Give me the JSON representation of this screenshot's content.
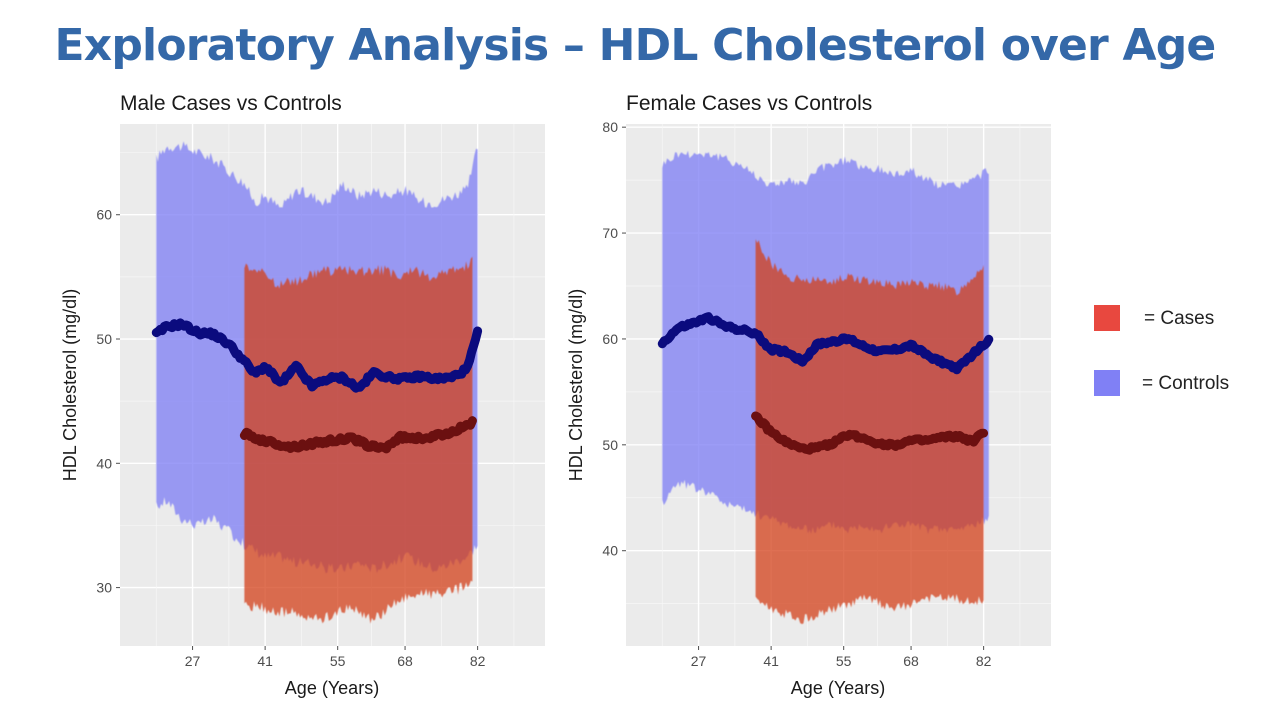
{
  "slide": {
    "title": "Exploratory Analysis – HDL Cholesterol over Age",
    "colors": {
      "title": "#3468a8",
      "cases": "#e8483f",
      "controls": "#8080f5",
      "cases_mean": "#6b1010",
      "controls_mean": "#0b0b7e"
    }
  },
  "legend": {
    "items": [
      {
        "label": "= Cases",
        "color": "#e8483f"
      },
      {
        "label": "= Controls",
        "color": "#8080f5"
      }
    ]
  },
  "chart_data": [
    {
      "type": "area",
      "title": "Male Cases vs Controls",
      "xlabel": "Age (Years)",
      "ylabel": "HDL Cholesterol (mg/dl)",
      "x_ticks": [
        27,
        41,
        55,
        68,
        82
      ],
      "y_ticks": [
        30,
        40,
        50,
        60
      ],
      "xlim": [
        13,
        95
      ],
      "ylim": [
        25.3,
        67.3
      ],
      "grid": true,
      "series": [
        {
          "name": "Controls",
          "x": [
            20,
            22,
            25,
            28,
            31,
            34,
            37,
            39,
            41,
            44,
            47,
            50,
            53,
            56,
            59,
            62,
            65,
            68,
            71,
            74,
            77,
            80,
            82
          ],
          "upper": [
            64.5,
            65.5,
            65.5,
            65.0,
            64.5,
            63.5,
            62.5,
            61.0,
            61.5,
            60.5,
            62.0,
            61.5,
            61.0,
            62.5,
            61.5,
            62.0,
            61.5,
            62.0,
            61.0,
            61.0,
            61.5,
            62.0,
            65.5
          ],
          "mean": [
            50.4,
            51.0,
            51.2,
            50.5,
            50.4,
            49.6,
            48.2,
            47.2,
            47.8,
            46.4,
            47.8,
            46.2,
            46.8,
            46.9,
            46.0,
            47.3,
            46.9,
            46.8,
            47.0,
            46.8,
            46.9,
            47.6,
            50.5
          ],
          "lower": [
            36.5,
            37.0,
            35.5,
            35.0,
            35.5,
            34.5,
            33.5,
            33.0,
            32.5,
            32.5,
            32.0,
            32.0,
            31.5,
            31.5,
            32.0,
            31.5,
            32.0,
            32.5,
            32.0,
            31.5,
            32.0,
            32.5,
            33.5
          ]
        },
        {
          "name": "Cases",
          "x": [
            37,
            40,
            43,
            46,
            49,
            52,
            55,
            58,
            61,
            64,
            67,
            70,
            73,
            76,
            79,
            81
          ],
          "upper": [
            56.0,
            55.5,
            54.5,
            54.5,
            55.0,
            55.5,
            55.5,
            55.5,
            55.5,
            55.5,
            55.0,
            55.5,
            55.0,
            55.5,
            55.5,
            56.5
          ],
          "mean": [
            42.4,
            41.9,
            41.6,
            41.3,
            41.5,
            41.7,
            41.9,
            42.0,
            41.4,
            41.2,
            42.1,
            42.0,
            42.1,
            42.4,
            42.9,
            43.3
          ],
          "lower": [
            28.5,
            28.5,
            28.0,
            28.0,
            27.5,
            27.5,
            28.0,
            28.5,
            27.5,
            28.0,
            29.0,
            29.5,
            29.5,
            29.5,
            30.0,
            30.5
          ]
        }
      ]
    },
    {
      "type": "area",
      "title": "Female Cases vs Controls",
      "xlabel": "Age (Years)",
      "ylabel": "HDL Cholesterol (mg/dl)",
      "x_ticks": [
        27,
        41,
        55,
        68,
        82
      ],
      "y_ticks": [
        40,
        50,
        60,
        70,
        80
      ],
      "xlim": [
        13,
        95
      ],
      "ylim": [
        31.0,
        80.3
      ],
      "grid": true,
      "series": [
        {
          "name": "Controls",
          "x": [
            20,
            23,
            26,
            29,
            32,
            35,
            38,
            41,
            44,
            47,
            50,
            53,
            56,
            59,
            62,
            65,
            68,
            71,
            74,
            77,
            80,
            83
          ],
          "upper": [
            76.5,
            77.5,
            77.5,
            77.5,
            77.0,
            76.5,
            75.5,
            74.5,
            75.0,
            74.5,
            76.0,
            76.5,
            77.0,
            76.0,
            76.0,
            75.5,
            76.0,
            75.0,
            74.5,
            74.5,
            75.0,
            76.0
          ],
          "mean": [
            59.6,
            61.0,
            61.5,
            62.0,
            61.2,
            60.9,
            60.5,
            59.0,
            58.8,
            57.9,
            59.5,
            59.8,
            60.0,
            59.3,
            58.8,
            59.0,
            59.4,
            58.5,
            57.8,
            57.2,
            58.6,
            59.9
          ],
          "lower": [
            44.5,
            46.5,
            46.0,
            45.5,
            44.5,
            44.0,
            43.5,
            43.0,
            42.5,
            42.0,
            42.0,
            42.5,
            42.0,
            42.5,
            42.0,
            42.5,
            42.5,
            42.0,
            42.0,
            42.0,
            42.5,
            43.0
          ]
        },
        {
          "name": "Cases",
          "x": [
            38,
            41,
            44,
            47,
            50,
            53,
            56,
            59,
            62,
            65,
            68,
            71,
            74,
            77,
            80,
            82
          ],
          "upper": [
            69.5,
            67.0,
            66.0,
            65.5,
            65.5,
            65.5,
            66.0,
            65.5,
            65.5,
            65.0,
            65.5,
            65.0,
            65.0,
            64.5,
            66.0,
            67.0
          ],
          "mean": [
            52.7,
            51.2,
            50.2,
            49.6,
            49.7,
            50.2,
            51.0,
            50.6,
            50.1,
            50.0,
            50.4,
            50.4,
            50.7,
            50.8,
            50.3,
            51.2
          ],
          "lower": [
            35.5,
            34.5,
            34.0,
            33.5,
            34.0,
            34.5,
            35.0,
            35.5,
            35.0,
            34.5,
            35.0,
            35.5,
            35.5,
            35.5,
            35.0,
            35.5
          ]
        }
      ]
    }
  ]
}
